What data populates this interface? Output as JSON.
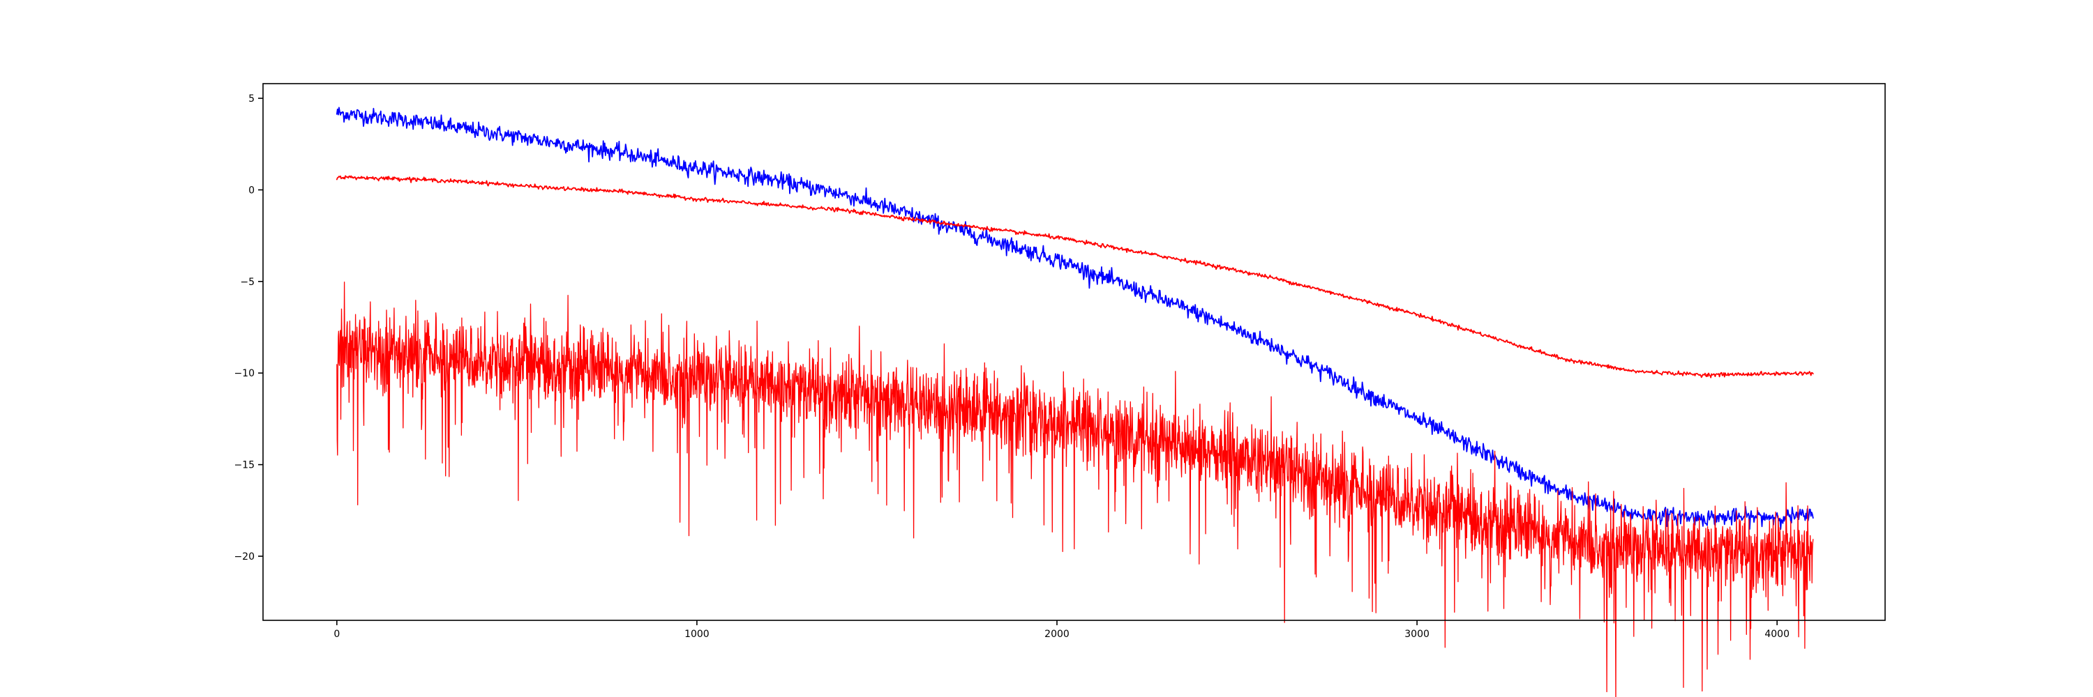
{
  "chart_data": {
    "type": "line",
    "title": "",
    "xlabel": "",
    "ylabel": "",
    "xlim": [
      -205,
      4300
    ],
    "ylim": [
      -23.5,
      5.8
    ],
    "x_ticks": [
      0,
      1000,
      2000,
      3000,
      4000
    ],
    "y_ticks": [
      5,
      0,
      -5,
      -10,
      -15,
      -20
    ],
    "x_tick_labels": [
      "0",
      "1000",
      "2000",
      "3000",
      "4000"
    ],
    "y_tick_labels": [
      "5",
      "0",
      "−5",
      "−10",
      "−15",
      "−20"
    ],
    "grid": false,
    "legend": "none",
    "series": [
      {
        "color": "#0000ff",
        "noise": 0.22,
        "points": [
          [
            0,
            4.2
          ],
          [
            200,
            3.8
          ],
          [
            400,
            3.2
          ],
          [
            600,
            2.6
          ],
          [
            800,
            2.0
          ],
          [
            1000,
            1.2
          ],
          [
            1200,
            0.6
          ],
          [
            1400,
            -0.2
          ],
          [
            1600,
            -1.4
          ],
          [
            1800,
            -2.6
          ],
          [
            2000,
            -3.8
          ],
          [
            2200,
            -5.3
          ],
          [
            2400,
            -6.8
          ],
          [
            2600,
            -8.5
          ],
          [
            2800,
            -10.5
          ],
          [
            3000,
            -12.5
          ],
          [
            3200,
            -14.5
          ],
          [
            3400,
            -16.5
          ],
          [
            3600,
            -17.7
          ],
          [
            3800,
            -17.9
          ],
          [
            4100,
            -17.8
          ]
        ]
      },
      {
        "color": "#ff0000",
        "noise": 0.05,
        "points": [
          [
            0,
            0.7
          ],
          [
            200,
            0.6
          ],
          [
            400,
            0.4
          ],
          [
            600,
            0.1
          ],
          [
            800,
            -0.1
          ],
          [
            1000,
            -0.5
          ],
          [
            1200,
            -0.8
          ],
          [
            1400,
            -1.1
          ],
          [
            1600,
            -1.6
          ],
          [
            1800,
            -2.1
          ],
          [
            2000,
            -2.6
          ],
          [
            2200,
            -3.3
          ],
          [
            2400,
            -4.0
          ],
          [
            2600,
            -4.8
          ],
          [
            2800,
            -5.8
          ],
          [
            3000,
            -6.8
          ],
          [
            3200,
            -8.0
          ],
          [
            3400,
            -9.2
          ],
          [
            3600,
            -9.9
          ],
          [
            3800,
            -10.1
          ],
          [
            4100,
            -10.0
          ]
        ]
      },
      {
        "color": "#ff0000",
        "noise": 1.1,
        "spikes": true,
        "points": [
          [
            0,
            -8.8
          ],
          [
            200,
            -9.0
          ],
          [
            400,
            -9.2
          ],
          [
            600,
            -9.6
          ],
          [
            800,
            -9.9
          ],
          [
            1000,
            -10.2
          ],
          [
            1200,
            -10.6
          ],
          [
            1400,
            -11.1
          ],
          [
            1600,
            -11.6
          ],
          [
            1800,
            -12.1
          ],
          [
            2000,
            -12.7
          ],
          [
            2200,
            -13.3
          ],
          [
            2400,
            -14.2
          ],
          [
            2600,
            -15.1
          ],
          [
            2800,
            -16.2
          ],
          [
            3000,
            -17.0
          ],
          [
            3200,
            -18.1
          ],
          [
            3400,
            -19.0
          ],
          [
            3600,
            -19.6
          ],
          [
            3800,
            -19.7
          ],
          [
            4100,
            -19.8
          ]
        ]
      }
    ]
  }
}
